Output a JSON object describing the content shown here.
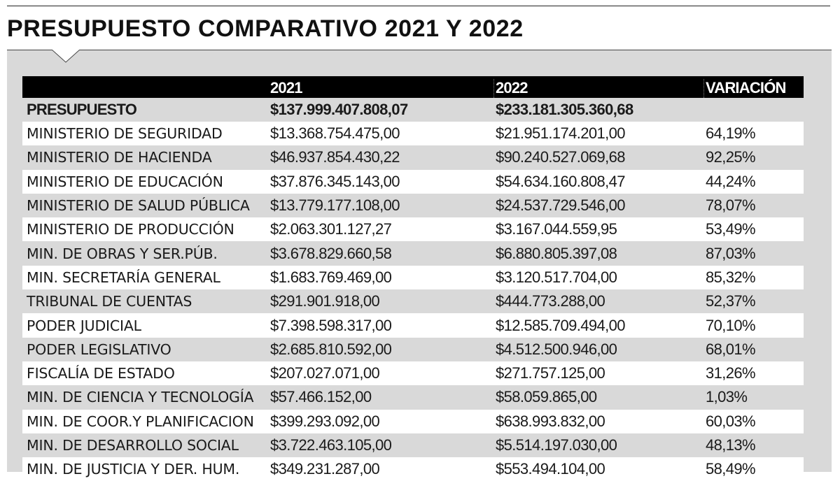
{
  "title": "PRESUPUESTO COMPARATIVO 2021 Y 2022",
  "chart_data": {
    "type": "table",
    "columns": [
      "",
      "2021",
      "2022",
      "VARIACIÓN"
    ],
    "total_row": {
      "label": "PRESUPUESTO",
      "v2021": "$137.999.407.808,07",
      "v2022": "$233.181.305.360,68",
      "variation": ""
    },
    "rows": [
      {
        "label": "MINISTERIO DE SEGURIDAD",
        "v2021": "$13.368.754.475,00",
        "v2022": "$21.951.174.201,00",
        "variation": "64,19%"
      },
      {
        "label": "MINISTERIO DE HACIENDA",
        "v2021": "$46.937.854.430,22",
        "v2022": "$90.240.527.069,68",
        "variation": "92,25%"
      },
      {
        "label": "MINISTERIO DE EDUCACIÓN",
        "v2021": "$37.876.345.143,00",
        "v2022": "$54.634.160.808,47",
        "variation": "44,24%"
      },
      {
        "label": "MINISTERIO DE SALUD PÚBLICA",
        "v2021": "$13.779.177.108,00",
        "v2022": "$24.537.729.546,00",
        "variation": "78,07%"
      },
      {
        "label": "MINISTERIO DE PRODUCCIÓN",
        "v2021": "$2.063.301.127,27",
        "v2022": "$3.167.044.559,95",
        "variation": "53,49%"
      },
      {
        "label": "MIN. DE OBRAS Y SER.PÚB.",
        "v2021": "$3.678.829.660,58",
        "v2022": "$6.880.805.397,08",
        "variation": "87,03%"
      },
      {
        "label": "MIN. SECRETARÍA GENERAL",
        "v2021": "$1.683.769.469,00",
        "v2022": "$3.120.517.704,00",
        "variation": "85,32%"
      },
      {
        "label": "TRIBUNAL DE CUENTAS",
        "v2021": "$291.901.918,00",
        "v2022": "$444.773.288,00",
        "variation": "52,37%"
      },
      {
        "label": "PODER JUDICIAL",
        "v2021": "$7.398.598.317,00",
        "v2022": "$12.585.709.494,00",
        "variation": "70,10%"
      },
      {
        "label": "PODER LEGISLATIVO",
        "v2021": "$2.685.810.592,00",
        "v2022": "$4.512.500.946,00",
        "variation": "68,01%"
      },
      {
        "label": "FISCALÍA DE ESTADO",
        "v2021": "$207.027.071,00",
        "v2022": "$271.757.125,00",
        "variation": "31,26%"
      },
      {
        "label": "MIN. DE CIENCIA Y TECNOLOGÍA",
        "v2021": "$57.466.152,00",
        "v2022": "$58.059.865,00",
        "variation": "1,03%"
      },
      {
        "label": "MIN. DE COOR.Y PLANIFICACION",
        "v2021": "$399.293.092,00",
        "v2022": "$638.993.832,00",
        "variation": "60,03%"
      },
      {
        "label": "MIN. DE DESARROLLO SOCIAL",
        "v2021": "$3.722.463.105,00",
        "v2022": "$5.514.197.030,00",
        "variation": "48,13%"
      },
      {
        "label": "MIN. DE JUSTICIA Y DER. HUM.",
        "v2021": "$349.231.287,00",
        "v2022": "$553.494.104,00",
        "variation": "58,49%"
      }
    ]
  }
}
